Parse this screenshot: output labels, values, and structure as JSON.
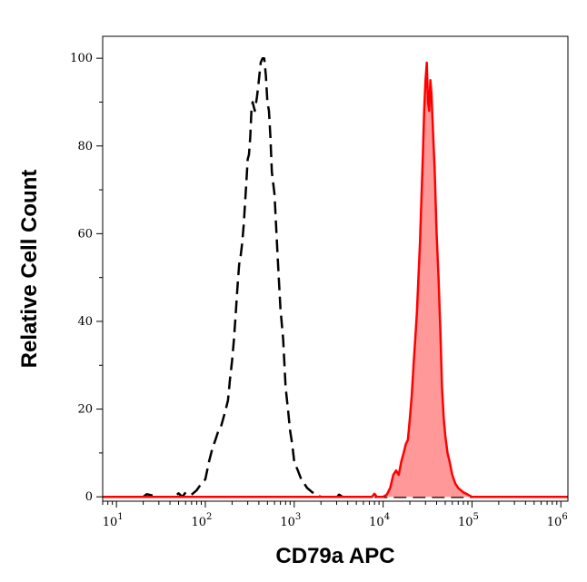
{
  "chart_data": {
    "type": "area",
    "xlabel": "CD79a APC",
    "ylabel": "Relative Cell Count",
    "xscale": "log",
    "xlim": [
      7,
      1200000
    ],
    "ylim": [
      -1,
      105
    ],
    "x_ticks": [
      {
        "base": "10",
        "exp": "1",
        "value": 10
      },
      {
        "base": "10",
        "exp": "2",
        "value": 100
      },
      {
        "base": "10",
        "exp": "3",
        "value": 1000
      },
      {
        "base": "10",
        "exp": "4",
        "value": 10000
      },
      {
        "base": "10",
        "exp": "5",
        "value": 100000
      },
      {
        "base": "10",
        "exp": "6",
        "value": 1000000
      }
    ],
    "y_ticks": [
      "0",
      "20",
      "40",
      "60",
      "80",
      "100"
    ],
    "grid": false,
    "series": [
      {
        "style": "dashed",
        "color": "#000000",
        "fill": "none",
        "points": [
          [
            7,
            0
          ],
          [
            20,
            0
          ],
          [
            22,
            0.6
          ],
          [
            30,
            0
          ],
          [
            45,
            0
          ],
          [
            50,
            0.8
          ],
          [
            55,
            0
          ],
          [
            60,
            1
          ],
          [
            70,
            0.5
          ],
          [
            80,
            1.5
          ],
          [
            90,
            3
          ],
          [
            100,
            4
          ],
          [
            110,
            8
          ],
          [
            120,
            11
          ],
          [
            130,
            13
          ],
          [
            140,
            15
          ],
          [
            150,
            16
          ],
          [
            160,
            18
          ],
          [
            170,
            20
          ],
          [
            180,
            22
          ],
          [
            190,
            27
          ],
          [
            200,
            31
          ],
          [
            210,
            36
          ],
          [
            220,
            42
          ],
          [
            230,
            48
          ],
          [
            240,
            53
          ],
          [
            250,
            55
          ],
          [
            260,
            58
          ],
          [
            270,
            62
          ],
          [
            280,
            67
          ],
          [
            290,
            72
          ],
          [
            300,
            77
          ],
          [
            310,
            78
          ],
          [
            320,
            82
          ],
          [
            330,
            88
          ],
          [
            340,
            90
          ],
          [
            360,
            88
          ],
          [
            380,
            91
          ],
          [
            400,
            95
          ],
          [
            420,
            99
          ],
          [
            440,
            100
          ],
          [
            460,
            100
          ],
          [
            480,
            96
          ],
          [
            500,
            90
          ],
          [
            520,
            88
          ],
          [
            540,
            82
          ],
          [
            560,
            74
          ],
          [
            600,
            69
          ],
          [
            650,
            55
          ],
          [
            700,
            43
          ],
          [
            750,
            36
          ],
          [
            800,
            25
          ],
          [
            850,
            20
          ],
          [
            900,
            15
          ],
          [
            950,
            12
          ],
          [
            1000,
            8
          ],
          [
            1100,
            6
          ],
          [
            1200,
            4
          ],
          [
            1400,
            2
          ],
          [
            1600,
            1
          ],
          [
            1800,
            0.3
          ],
          [
            2000,
            0
          ],
          [
            3000,
            0
          ],
          [
            3200,
            0.5
          ],
          [
            3500,
            0
          ],
          [
            5000,
            0
          ],
          [
            1200000,
            0
          ]
        ]
      },
      {
        "style": "solid",
        "color": "#ff0000",
        "fill": "#ff9999",
        "points": [
          [
            7,
            0
          ],
          [
            7500,
            0
          ],
          [
            8000,
            0.7
          ],
          [
            8500,
            0
          ],
          [
            10000,
            0
          ],
          [
            11000,
            0.5
          ],
          [
            12000,
            2
          ],
          [
            13000,
            5
          ],
          [
            14000,
            6
          ],
          [
            15000,
            5
          ],
          [
            16000,
            8
          ],
          [
            17000,
            10
          ],
          [
            18000,
            12
          ],
          [
            19000,
            13
          ],
          [
            20000,
            18
          ],
          [
            21000,
            23
          ],
          [
            22000,
            30
          ],
          [
            23000,
            36
          ],
          [
            24000,
            42
          ],
          [
            25000,
            50
          ],
          [
            26000,
            58
          ],
          [
            27000,
            68
          ],
          [
            28000,
            78
          ],
          [
            29000,
            88
          ],
          [
            30000,
            95
          ],
          [
            31000,
            99
          ],
          [
            32000,
            90
          ],
          [
            33000,
            88
          ],
          [
            34000,
            95
          ],
          [
            35000,
            92
          ],
          [
            36000,
            86
          ],
          [
            37000,
            80
          ],
          [
            38000,
            75
          ],
          [
            40000,
            60
          ],
          [
            42000,
            50
          ],
          [
            44000,
            38
          ],
          [
            46000,
            25
          ],
          [
            48000,
            18
          ],
          [
            50000,
            14
          ],
          [
            53000,
            10
          ],
          [
            56000,
            8
          ],
          [
            60000,
            5
          ],
          [
            65000,
            3
          ],
          [
            70000,
            2
          ],
          [
            80000,
            1
          ],
          [
            90000,
            0.5
          ],
          [
            100000,
            0
          ],
          [
            1200000,
            0
          ]
        ]
      }
    ]
  }
}
